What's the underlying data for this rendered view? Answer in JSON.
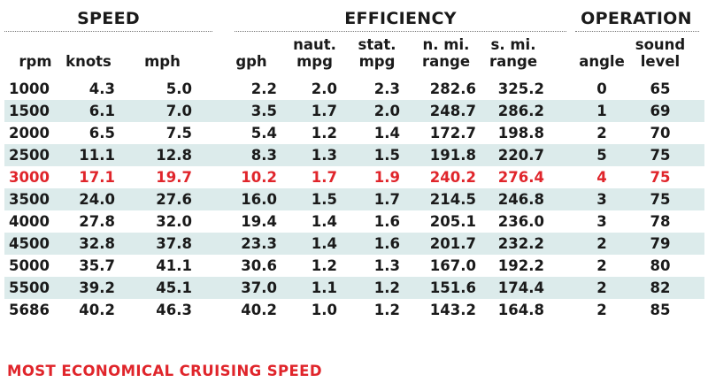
{
  "groups": {
    "speed": "SPEED",
    "efficiency": "EFFICIENCY",
    "operation": "OPERATION"
  },
  "columns": {
    "rpm": [
      "rpm"
    ],
    "knots": [
      "knots"
    ],
    "mph": [
      "mph"
    ],
    "gph": [
      "gph"
    ],
    "naut_mpg": [
      "naut.",
      "mpg"
    ],
    "stat_mpg": [
      "stat.",
      "mpg"
    ],
    "n_mi_range": [
      "n. mi.",
      "range"
    ],
    "s_mi_range": [
      "s. mi.",
      "range"
    ],
    "angle": [
      "angle"
    ],
    "sound_level": [
      "sound",
      "level"
    ]
  },
  "rows": [
    {
      "rpm": "1000",
      "knots": "4.3",
      "mph": "5.0",
      "gph": "2.2",
      "naut_mpg": "2.0",
      "stat_mpg": "2.3",
      "n_mi_range": "282.6",
      "s_mi_range": "325.2",
      "angle": "0",
      "sound_level": "65"
    },
    {
      "rpm": "1500",
      "knots": "6.1",
      "mph": "7.0",
      "gph": "3.5",
      "naut_mpg": "1.7",
      "stat_mpg": "2.0",
      "n_mi_range": "248.7",
      "s_mi_range": "286.2",
      "angle": "1",
      "sound_level": "69"
    },
    {
      "rpm": "2000",
      "knots": "6.5",
      "mph": "7.5",
      "gph": "5.4",
      "naut_mpg": "1.2",
      "stat_mpg": "1.4",
      "n_mi_range": "172.7",
      "s_mi_range": "198.8",
      "angle": "2",
      "sound_level": "70"
    },
    {
      "rpm": "2500",
      "knots": "11.1",
      "mph": "12.8",
      "gph": "8.3",
      "naut_mpg": "1.3",
      "stat_mpg": "1.5",
      "n_mi_range": "191.8",
      "s_mi_range": "220.7",
      "angle": "5",
      "sound_level": "75"
    },
    {
      "rpm": "3000",
      "knots": "17.1",
      "mph": "19.7",
      "gph": "10.2",
      "naut_mpg": "1.7",
      "stat_mpg": "1.9",
      "n_mi_range": "240.2",
      "s_mi_range": "276.4",
      "angle": "4",
      "sound_level": "75",
      "highlight": true
    },
    {
      "rpm": "3500",
      "knots": "24.0",
      "mph": "27.6",
      "gph": "16.0",
      "naut_mpg": "1.5",
      "stat_mpg": "1.7",
      "n_mi_range": "214.5",
      "s_mi_range": "246.8",
      "angle": "3",
      "sound_level": "75"
    },
    {
      "rpm": "4000",
      "knots": "27.8",
      "mph": "32.0",
      "gph": "19.4",
      "naut_mpg": "1.4",
      "stat_mpg": "1.6",
      "n_mi_range": "205.1",
      "s_mi_range": "236.0",
      "angle": "3",
      "sound_level": "78"
    },
    {
      "rpm": "4500",
      "knots": "32.8",
      "mph": "37.8",
      "gph": "23.3",
      "naut_mpg": "1.4",
      "stat_mpg": "1.6",
      "n_mi_range": "201.7",
      "s_mi_range": "232.2",
      "angle": "2",
      "sound_level": "79"
    },
    {
      "rpm": "5000",
      "knots": "35.7",
      "mph": "41.1",
      "gph": "30.6",
      "naut_mpg": "1.2",
      "stat_mpg": "1.3",
      "n_mi_range": "167.0",
      "s_mi_range": "192.2",
      "angle": "2",
      "sound_level": "80"
    },
    {
      "rpm": "5500",
      "knots": "39.2",
      "mph": "45.1",
      "gph": "37.0",
      "naut_mpg": "1.1",
      "stat_mpg": "1.2",
      "n_mi_range": "151.6",
      "s_mi_range": "174.4",
      "angle": "2",
      "sound_level": "82"
    },
    {
      "rpm": "5686",
      "knots": "40.2",
      "mph": "46.3",
      "gph": "40.2",
      "naut_mpg": "1.0",
      "stat_mpg": "1.2",
      "n_mi_range": "143.2",
      "s_mi_range": "164.8",
      "angle": "2",
      "sound_level": "85"
    }
  ],
  "footnote": "MOST ECONOMICAL CRUISING SPEED",
  "colors": {
    "highlight": "#e0252b",
    "row_shade": "#dcebeb",
    "text": "#1a1a1a"
  }
}
